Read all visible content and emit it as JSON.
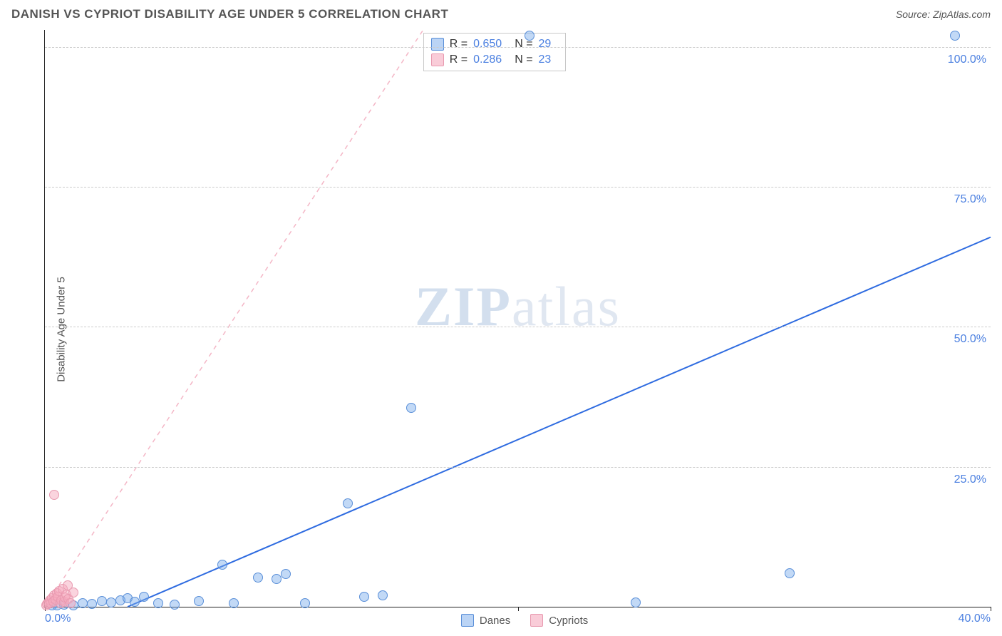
{
  "header": {
    "title": "DANISH VS CYPRIOT DISABILITY AGE UNDER 5 CORRELATION CHART",
    "source": "Source: ZipAtlas.com"
  },
  "watermark": {
    "left": "ZIP",
    "right": "atlas"
  },
  "chart": {
    "type": "scatter",
    "ylabel": "Disability Age Under 5",
    "xlim": [
      0,
      40
    ],
    "ylim": [
      0,
      103
    ],
    "xticks": [
      {
        "v": 0,
        "label": "0.0%",
        "show_label": true
      },
      {
        "v": 20,
        "label": "",
        "show_label": false
      },
      {
        "v": 40,
        "label": "40.0%",
        "show_label": true
      }
    ],
    "yticks": [
      {
        "v": 25,
        "label": "25.0%"
      },
      {
        "v": 50,
        "label": "50.0%"
      },
      {
        "v": 75,
        "label": "75.0%"
      },
      {
        "v": 100,
        "label": "100.0%"
      }
    ],
    "grid_color": "#cccccc",
    "background": "#ffffff",
    "axis_color": "#222222",
    "tick_label_color": "#4a7fe0",
    "series": [
      {
        "name": "Danes",
        "color_fill": "rgba(120,170,235,0.45)",
        "color_stroke": "#5a8fd8",
        "marker_radius": 7,
        "R": "0.650",
        "N": "29",
        "trend": {
          "x1": 3.5,
          "y1": 0,
          "x2": 40,
          "y2": 66,
          "stroke": "#2e6be0",
          "width": 2,
          "dash": "none"
        },
        "points": [
          {
            "x": 0.3,
            "y": 0.3
          },
          {
            "x": 0.5,
            "y": 0.2
          },
          {
            "x": 0.8,
            "y": 0.4
          },
          {
            "x": 1.2,
            "y": 0.3
          },
          {
            "x": 1.6,
            "y": 0.6
          },
          {
            "x": 2.0,
            "y": 0.5
          },
          {
            "x": 2.4,
            "y": 1.0
          },
          {
            "x": 2.8,
            "y": 0.8
          },
          {
            "x": 3.2,
            "y": 1.2
          },
          {
            "x": 3.5,
            "y": 1.5
          },
          {
            "x": 3.8,
            "y": 0.9
          },
          {
            "x": 4.2,
            "y": 1.8
          },
          {
            "x": 4.8,
            "y": 0.6
          },
          {
            "x": 5.5,
            "y": 0.4
          },
          {
            "x": 6.5,
            "y": 1.0
          },
          {
            "x": 7.5,
            "y": 7.5
          },
          {
            "x": 8.0,
            "y": 0.6
          },
          {
            "x": 9.0,
            "y": 5.2
          },
          {
            "x": 9.8,
            "y": 5.0
          },
          {
            "x": 10.2,
            "y": 5.8
          },
          {
            "x": 11.0,
            "y": 0.7
          },
          {
            "x": 12.8,
            "y": 18.5
          },
          {
            "x": 13.5,
            "y": 1.8
          },
          {
            "x": 14.3,
            "y": 2.0
          },
          {
            "x": 15.5,
            "y": 35.5
          },
          {
            "x": 20.5,
            "y": 102
          },
          {
            "x": 25.0,
            "y": 0.8
          },
          {
            "x": 31.5,
            "y": 6.0
          },
          {
            "x": 38.5,
            "y": 102
          }
        ]
      },
      {
        "name": "Cypriots",
        "color_fill": "rgba(245,170,190,0.5)",
        "color_stroke": "#e89ab0",
        "marker_radius": 7,
        "R": "0.286",
        "N": "23",
        "trend": {
          "x1": 0,
          "y1": 0,
          "x2": 16,
          "y2": 103,
          "stroke": "#f4b6c6",
          "width": 1.5,
          "dash": "6,6"
        },
        "points": [
          {
            "x": 0.05,
            "y": 0.3
          },
          {
            "x": 0.1,
            "y": 0.5
          },
          {
            "x": 0.15,
            "y": 0.8
          },
          {
            "x": 0.2,
            "y": 1.2
          },
          {
            "x": 0.25,
            "y": 0.6
          },
          {
            "x": 0.3,
            "y": 1.5
          },
          {
            "x": 0.35,
            "y": 0.9
          },
          {
            "x": 0.4,
            "y": 2.0
          },
          {
            "x": 0.45,
            "y": 1.3
          },
          {
            "x": 0.5,
            "y": 2.4
          },
          {
            "x": 0.55,
            "y": 1.8
          },
          {
            "x": 0.6,
            "y": 2.8
          },
          {
            "x": 0.65,
            "y": 0.7
          },
          {
            "x": 0.7,
            "y": 1.1
          },
          {
            "x": 0.75,
            "y": 3.2
          },
          {
            "x": 0.8,
            "y": 0.9
          },
          {
            "x": 0.85,
            "y": 1.6
          },
          {
            "x": 0.9,
            "y": 2.2
          },
          {
            "x": 0.95,
            "y": 3.8
          },
          {
            "x": 1.0,
            "y": 1.4
          },
          {
            "x": 1.1,
            "y": 0.6
          },
          {
            "x": 1.2,
            "y": 2.6
          },
          {
            "x": 0.4,
            "y": 20.0
          }
        ]
      }
    ],
    "legend": [
      {
        "swatch": "b",
        "label": "Danes"
      },
      {
        "swatch": "p",
        "label": "Cypriots"
      }
    ],
    "stat_labels": {
      "R": "R =",
      "N": "N ="
    }
  }
}
